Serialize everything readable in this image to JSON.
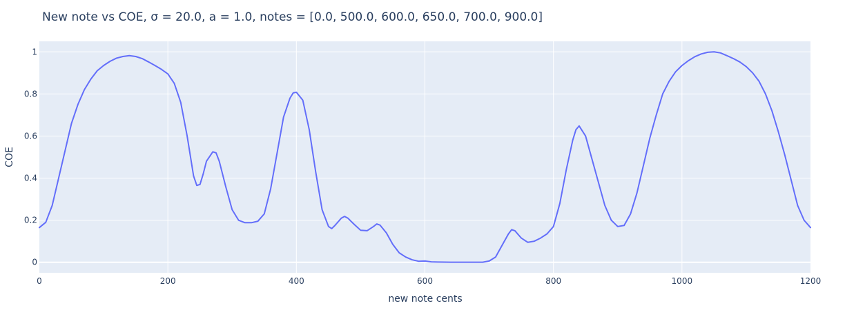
{
  "chart_data": {
    "type": "line",
    "title": "New note vs COE, σ = 20.0, a = 1.0, notes = [0.0, 500.0, 600.0, 650.0, 700.0, 900.0]",
    "xlabel": "new note cents",
    "ylabel": "COE",
    "xlim": [
      0,
      1200
    ],
    "ylim": [
      -0.05,
      1.05
    ],
    "x_ticks": [
      0,
      200,
      400,
      600,
      800,
      1000,
      1200
    ],
    "x_tick_labels": [
      "0",
      "200",
      "400",
      "600",
      "800",
      "1000",
      "1200"
    ],
    "y_ticks": [
      0,
      0.2,
      0.4,
      0.6,
      0.8,
      1
    ],
    "y_tick_labels": [
      "0",
      "0.2",
      "0.4",
      "0.6",
      "0.8",
      "1"
    ],
    "grid": true,
    "colors": {
      "plot_background": "#e5ecf6",
      "grid": "#ffffff",
      "line": "#636efa",
      "text": "#2a3f5f"
    },
    "series": [
      {
        "x": [
          0,
          10,
          20,
          30,
          40,
          50,
          60,
          70,
          80,
          90,
          100,
          110,
          120,
          130,
          140,
          150,
          160,
          170,
          180,
          190,
          200,
          210,
          220,
          230,
          240,
          245,
          250,
          255,
          260,
          270,
          275,
          280,
          290,
          300,
          310,
          320,
          330,
          340,
          350,
          360,
          370,
          380,
          390,
          395,
          400,
          410,
          420,
          430,
          440,
          450,
          455,
          460,
          470,
          475,
          480,
          490,
          500,
          510,
          520,
          525,
          530,
          540,
          550,
          560,
          570,
          580,
          590,
          600,
          610,
          620,
          640,
          660,
          680,
          690,
          700,
          710,
          720,
          730,
          735,
          740,
          750,
          760,
          770,
          780,
          790,
          800,
          810,
          820,
          830,
          835,
          840,
          850,
          860,
          870,
          880,
          890,
          900,
          910,
          920,
          930,
          940,
          950,
          960,
          970,
          980,
          990,
          1000,
          1010,
          1020,
          1030,
          1040,
          1050,
          1060,
          1070,
          1080,
          1090,
          1100,
          1110,
          1120,
          1130,
          1140,
          1150,
          1160,
          1170,
          1180,
          1190,
          1200
        ],
        "y": [
          0.165,
          0.19,
          0.27,
          0.4,
          0.53,
          0.66,
          0.75,
          0.82,
          0.87,
          0.91,
          0.935,
          0.955,
          0.97,
          0.978,
          0.982,
          0.978,
          0.968,
          0.952,
          0.935,
          0.917,
          0.895,
          0.85,
          0.76,
          0.6,
          0.41,
          0.365,
          0.37,
          0.42,
          0.48,
          0.525,
          0.52,
          0.48,
          0.36,
          0.25,
          0.2,
          0.188,
          0.188,
          0.195,
          0.23,
          0.35,
          0.52,
          0.69,
          0.78,
          0.805,
          0.808,
          0.77,
          0.63,
          0.43,
          0.25,
          0.17,
          0.16,
          0.175,
          0.21,
          0.218,
          0.21,
          0.18,
          0.152,
          0.15,
          0.17,
          0.182,
          0.177,
          0.14,
          0.085,
          0.045,
          0.025,
          0.012,
          0.005,
          0.006,
          0.002,
          0.001,
          0.0005,
          0.0003,
          0.0002,
          0.0003,
          0.006,
          0.025,
          0.08,
          0.135,
          0.155,
          0.15,
          0.115,
          0.095,
          0.1,
          0.115,
          0.135,
          0.17,
          0.28,
          0.44,
          0.58,
          0.63,
          0.648,
          0.6,
          0.49,
          0.38,
          0.27,
          0.2,
          0.17,
          0.175,
          0.23,
          0.33,
          0.46,
          0.59,
          0.7,
          0.8,
          0.86,
          0.905,
          0.935,
          0.958,
          0.977,
          0.99,
          0.998,
          1.0,
          0.995,
          0.982,
          0.968,
          0.952,
          0.93,
          0.9,
          0.86,
          0.8,
          0.72,
          0.62,
          0.51,
          0.39,
          0.27,
          0.2,
          0.165
        ]
      }
    ]
  }
}
